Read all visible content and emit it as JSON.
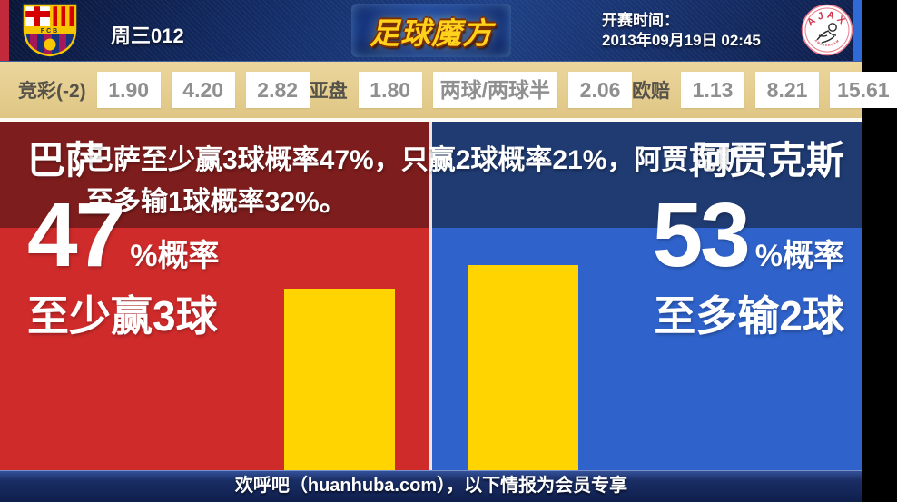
{
  "header": {
    "match_code": "周三012",
    "site_logo": "足球魔方",
    "kickoff_label": "开赛时间：",
    "kickoff_datetime": "2013年09月19日 02:45",
    "home_logo_name": "fc-barcelona-crest",
    "home_crest_text": "FCB",
    "away_logo_name": "afc-ajax-crest",
    "away_crest_text": "AJAX",
    "away_crest_subtext": "AMSTERDAM"
  },
  "odds_bar": {
    "groups": [
      {
        "label": "竞彩(-2)",
        "values": [
          "1.90",
          "4.20",
          "2.82"
        ]
      },
      {
        "label": "亚盘",
        "values": [
          "1.80",
          "两球/两球半",
          "2.06"
        ]
      },
      {
        "label": "欧赔",
        "values": [
          "1.13",
          "8.21",
          "15.61"
        ]
      }
    ]
  },
  "summary": {
    "line1": "巴萨至少赢3球概率47%，只赢2球概率21%，阿贾克斯",
    "line2": "至多输1球概率32%。",
    "full_text": "巴萨至少赢3球概率47%，只赢2球概率21%，阿贾克斯至多输1球概率32%。"
  },
  "panels": {
    "left": {
      "team": "巴萨",
      "percent": "47",
      "percent_label": "%概率",
      "outcome": "至少赢3球"
    },
    "right": {
      "team": "阿贾克斯",
      "percent": "53",
      "percent_label": "%概率",
      "outcome": "至多输2球"
    }
  },
  "chart_data": {
    "type": "bar",
    "categories": [
      "巴萨",
      "阿贾克斯"
    ],
    "values": [
      47,
      53
    ],
    "unit": "%",
    "bar_color": "#FFD400",
    "legend_position": "none",
    "grid": false
  },
  "footer": {
    "text": "欢呼吧（huanhuba.com），以下情报为会员专享"
  },
  "colors": {
    "bright_red": "#CF2B2B",
    "bright_blue": "#2F63CB",
    "dark_red": "#7E1D1D",
    "dark_navy": "#1F3B72",
    "bar_yellow": "#FFD400",
    "odds_tan": "#E3CC8E",
    "header_navy": "#132C66",
    "left_edge_red": "#C2293A",
    "right_edge_blue": "#2E6BD6",
    "logo_yellow": "#FFD21B"
  }
}
